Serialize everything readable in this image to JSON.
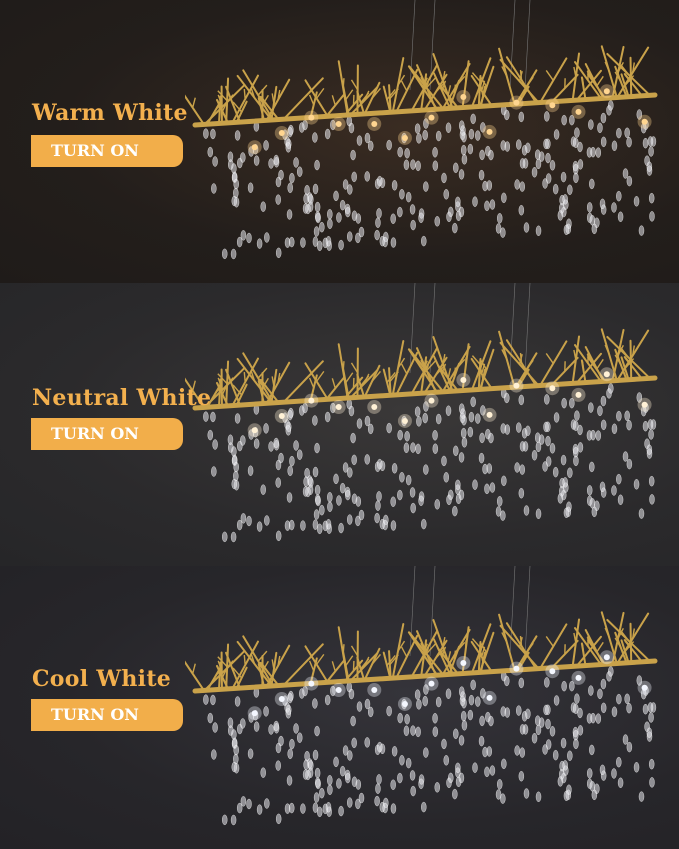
{
  "panels": [
    {
      "title": "Warm White",
      "button_label": "TURN ON",
      "light_color": "#ffd590"
    },
    {
      "title": "Neutral White",
      "button_label": "TURN ON",
      "light_color": "#fff1d6"
    },
    {
      "title": "Cool White",
      "button_label": "TURN ON",
      "light_color": "#f4f7ff"
    }
  ],
  "colors": {
    "accent": "#f2ae4a",
    "title": "#f3b04e",
    "branch": "#c9a24a"
  }
}
